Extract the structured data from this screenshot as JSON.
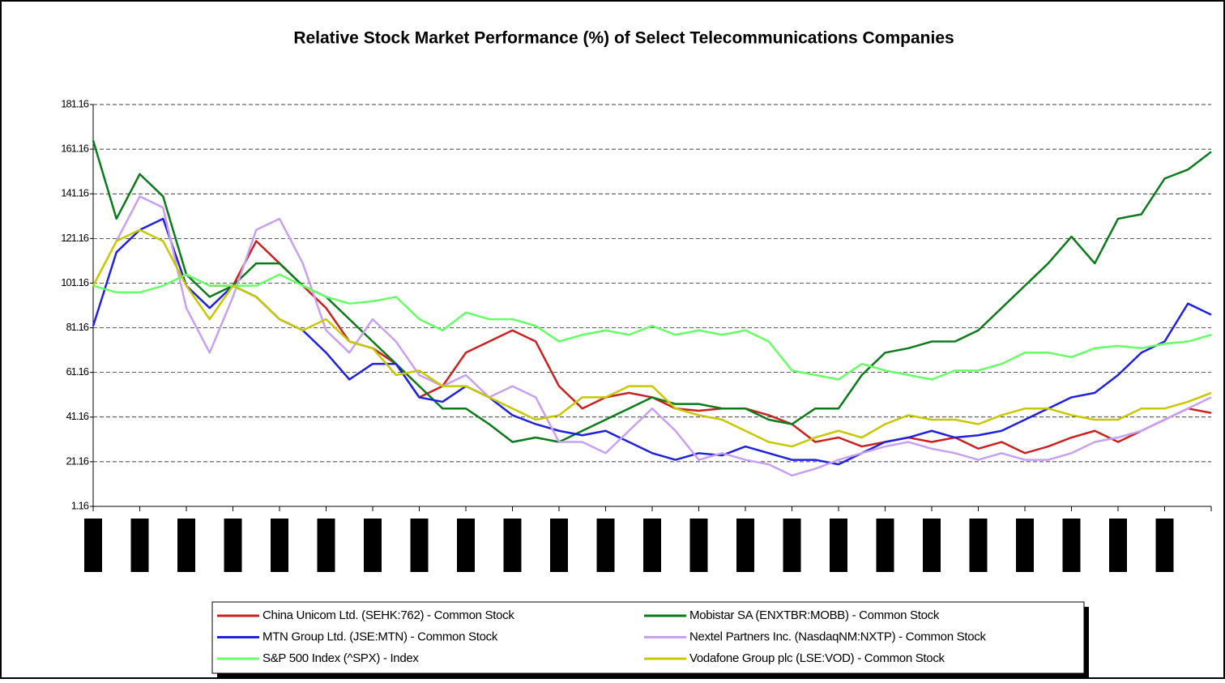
{
  "chart_data": {
    "type": "line",
    "title": "Relative Stock Market Performance (%) of Select Telecommunications Companies",
    "categories": [
      null,
      null,
      null,
      null,
      null,
      null,
      null,
      null,
      null,
      null,
      null,
      null,
      null,
      null,
      null,
      null,
      null,
      null,
      null,
      null,
      null,
      null,
      null,
      null,
      null,
      null,
      null,
      null,
      null,
      null,
      null,
      null,
      null,
      null,
      null,
      null,
      null,
      null,
      null,
      null,
      null,
      null,
      null,
      null,
      null,
      null,
      null,
      null,
      null
    ],
    "ylim": [
      1.16,
      181.16
    ],
    "yticks": [
      1.16,
      21.16,
      41.16,
      61.16,
      81.16,
      101.16,
      121.16,
      141.16,
      161.16,
      181.16
    ],
    "grid": true,
    "legend": "bottom",
    "series": [
      {
        "name": "China Unicom Ltd. (SEHK:762) - Common Stock",
        "color": "#cc2020",
        "values": [
          null,
          null,
          null,
          null,
          null,
          100,
          100,
          120,
          110,
          100,
          90,
          75,
          72,
          65,
          50,
          55,
          70,
          75,
          80,
          75,
          55,
          45,
          50,
          52,
          50,
          45,
          44,
          45,
          45,
          42,
          38,
          30,
          32,
          28,
          30,
          32,
          30,
          32,
          27,
          30,
          25,
          28,
          32,
          35,
          30,
          35,
          40,
          45,
          43
        ]
      },
      {
        "name": "Mobistar SA (ENXTBR:MOBB) - Common Stock",
        "color": "#0a7a1a",
        "values": [
          165,
          130,
          150,
          140,
          105,
          95,
          100,
          110,
          110,
          100,
          95,
          85,
          75,
          65,
          55,
          45,
          45,
          38,
          30,
          32,
          30,
          35,
          40,
          45,
          50,
          47,
          47,
          45,
          45,
          40,
          38,
          45,
          45,
          60,
          70,
          72,
          75,
          75,
          80,
          90,
          100,
          110,
          122,
          110,
          130,
          132,
          148,
          152,
          160
        ]
      },
      {
        "name": "MTN Group Ltd. (JSE:MTN) - Common Stock",
        "color": "#2020e0",
        "values": [
          82,
          115,
          125,
          130,
          100,
          90,
          100,
          95,
          85,
          80,
          70,
          58,
          65,
          65,
          50,
          48,
          55,
          50,
          42,
          38,
          35,
          33,
          35,
          30,
          25,
          22,
          25,
          24,
          28,
          25,
          22,
          22,
          20,
          25,
          30,
          32,
          35,
          32,
          33,
          35,
          40,
          45,
          50,
          52,
          60,
          70,
          75,
          92,
          87
        ]
      },
      {
        "name": "Nextel Partners Inc. (NasdaqNM:NXTP) - Common Stock",
        "color": "#c8a0f0",
        "values": [
          null,
          120,
          140,
          135,
          90,
          70,
          95,
          125,
          130,
          110,
          80,
          70,
          85,
          75,
          60,
          55,
          60,
          50,
          55,
          50,
          30,
          30,
          25,
          35,
          45,
          35,
          22,
          25,
          22,
          20,
          15,
          18,
          22,
          25,
          28,
          30,
          27,
          25,
          22,
          25,
          22,
          22,
          25,
          30,
          32,
          35,
          40,
          45,
          50
        ]
      },
      {
        "name": "S&P 500 Index (^SPX) - Index",
        "color": "#66ff66",
        "values": [
          100,
          97,
          97,
          100,
          105,
          100,
          100,
          100,
          105,
          100,
          95,
          92,
          93,
          95,
          85,
          80,
          88,
          85,
          85,
          82,
          75,
          78,
          80,
          78,
          82,
          78,
          80,
          78,
          80,
          75,
          62,
          60,
          58,
          65,
          62,
          60,
          58,
          62,
          62,
          65,
          70,
          70,
          68,
          72,
          73,
          72,
          74,
          75,
          78
        ]
      },
      {
        "name": "Vodafone Group plc (LSE:VOD) - Common Stock",
        "color": "#c8c800",
        "values": [
          100,
          120,
          125,
          120,
          100,
          85,
          100,
          95,
          85,
          80,
          85,
          75,
          72,
          60,
          62,
          55,
          55,
          50,
          45,
          40,
          42,
          50,
          50,
          55,
          55,
          45,
          42,
          40,
          35,
          30,
          28,
          32,
          35,
          32,
          38,
          42,
          40,
          40,
          38,
          42,
          45,
          45,
          42,
          40,
          40,
          45,
          45,
          48,
          52
        ]
      }
    ]
  }
}
